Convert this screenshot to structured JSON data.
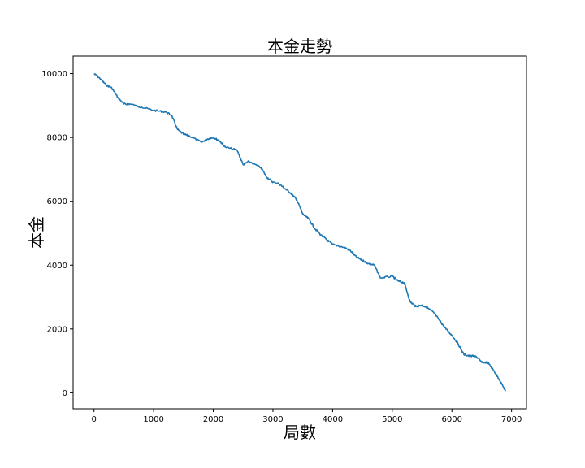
{
  "chart_data": {
    "type": "line",
    "title": "本金走勢",
    "xlabel": "局數",
    "ylabel": "本金",
    "xlim": [
      -350,
      7250
    ],
    "ylim": [
      -500,
      10550
    ],
    "xticks": [
      "0",
      "1000",
      "2000",
      "3000",
      "4000",
      "5000",
      "6000",
      "7000"
    ],
    "xtick_values": [
      0,
      1000,
      2000,
      3000,
      4000,
      5000,
      6000,
      7000
    ],
    "yticks": [
      "0",
      "2000",
      "4000",
      "6000",
      "8000",
      "10000"
    ],
    "ytick_values": [
      0,
      2000,
      4000,
      6000,
      8000,
      10000
    ],
    "grid": false,
    "series_color": "#1f77b4",
    "series": [
      {
        "x": [
          0,
          100,
          200,
          300,
          400,
          500,
          600,
          800,
          1000,
          1200,
          1300,
          1400,
          1500,
          1600,
          1800,
          1900,
          2000,
          2100,
          2200,
          2400,
          2500,
          2600,
          2800,
          2900,
          3000,
          3100,
          3200,
          3300,
          3400,
          3500,
          3600,
          3700,
          3800,
          3900,
          4000,
          4200,
          4300,
          4400,
          4500,
          4600,
          4700,
          4800,
          5000,
          5100,
          5200,
          5300,
          5400,
          5500,
          5600,
          5700,
          5800,
          5900,
          6000,
          6100,
          6200,
          6300,
          6400,
          6500,
          6600,
          6700,
          6800,
          6900
        ],
        "y": [
          10000,
          9850,
          9650,
          9550,
          9250,
          9050,
          9050,
          8950,
          8850,
          8800,
          8700,
          8250,
          8100,
          8050,
          7850,
          7950,
          8000,
          7900,
          7700,
          7600,
          7150,
          7250,
          7050,
          6750,
          6600,
          6550,
          6400,
          6250,
          6050,
          5600,
          5450,
          5150,
          4950,
          4800,
          4650,
          4550,
          4450,
          4250,
          4150,
          4050,
          4000,
          3600,
          3650,
          3500,
          3450,
          2850,
          2700,
          2750,
          2650,
          2500,
          2250,
          2000,
          1800,
          1550,
          1200,
          1150,
          1150,
          950,
          950,
          700,
          400,
          50
        ]
      }
    ]
  }
}
